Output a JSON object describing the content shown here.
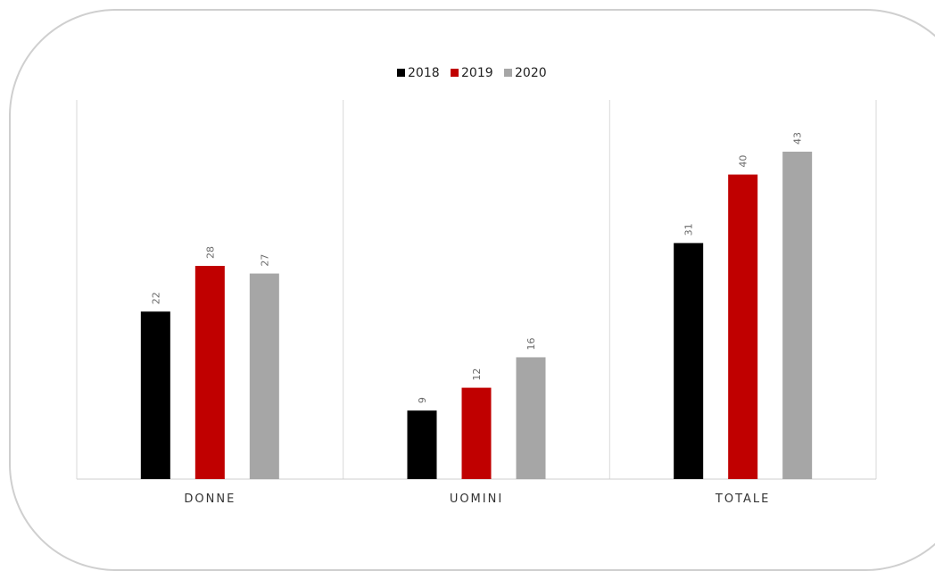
{
  "chart_data": {
    "type": "bar",
    "categories": [
      "DONNE",
      "UOMINI",
      "TOTALE"
    ],
    "series": [
      {
        "name": "2018",
        "values": [
          22,
          9,
          31
        ],
        "color": "#000000"
      },
      {
        "name": "2019",
        "values": [
          28,
          12,
          40
        ],
        "color": "#c00000"
      },
      {
        "name": "2020",
        "values": [
          27,
          16,
          43
        ],
        "color": "#a6a6a6"
      }
    ],
    "title": "",
    "xlabel": "",
    "ylabel": "",
    "ylim": [
      0,
      48
    ],
    "grid": false,
    "legend": "top-center",
    "value_labels": true,
    "value_label_orientation": "vertical"
  }
}
